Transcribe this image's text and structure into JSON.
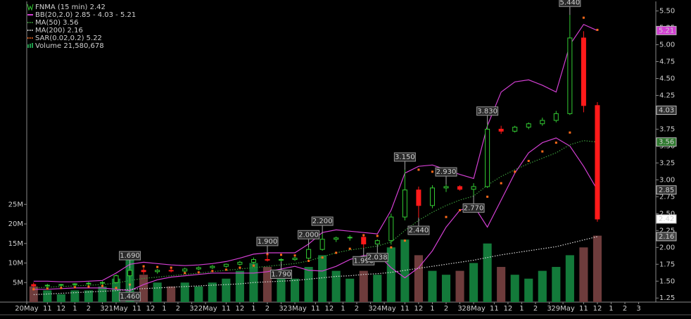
{
  "chart_data": {
    "type": "candlestick",
    "title": "FNMA (15 min) 2.42",
    "title_color": "#ffffff",
    "up_color": "#33cc33",
    "down_color": "#ff1a1a",
    "xlim": [
      0,
      45.75
    ],
    "xticks": [
      {
        "value": 0,
        "label": "20May"
      },
      {
        "value": 1.5,
        "label": "11"
      },
      {
        "value": 2.5,
        "label": "12"
      },
      {
        "value": 3.5,
        "label": "1"
      },
      {
        "value": 4.5,
        "label": "2"
      },
      {
        "value": 5.5,
        "label": "3"
      },
      {
        "value": 6.5,
        "label": "21May"
      },
      {
        "value": 8,
        "label": "11"
      },
      {
        "value": 9,
        "label": "12"
      },
      {
        "value": 10,
        "label": "1"
      },
      {
        "value": 11,
        "label": "2"
      },
      {
        "value": 12,
        "label": "3"
      },
      {
        "value": 13,
        "label": "22May"
      },
      {
        "value": 14.5,
        "label": "11"
      },
      {
        "value": 15.5,
        "label": "12"
      },
      {
        "value": 16.5,
        "label": "1"
      },
      {
        "value": 17.5,
        "label": "2"
      },
      {
        "value": 18.5,
        "label": "3"
      },
      {
        "value": 19.5,
        "label": "23May"
      },
      {
        "value": 21,
        "label": "11"
      },
      {
        "value": 22,
        "label": "12"
      },
      {
        "value": 23,
        "label": "1"
      },
      {
        "value": 24,
        "label": "2"
      },
      {
        "value": 25,
        "label": "3"
      },
      {
        "value": 26,
        "label": "24May"
      },
      {
        "value": 27.5,
        "label": "11"
      },
      {
        "value": 28.5,
        "label": "12"
      },
      {
        "value": 29.5,
        "label": "1"
      },
      {
        "value": 30.5,
        "label": "2"
      },
      {
        "value": 31.5,
        "label": "3"
      },
      {
        "value": 32.5,
        "label": "28May"
      },
      {
        "value": 34,
        "label": "11"
      },
      {
        "value": 35,
        "label": "12"
      },
      {
        "value": 36,
        "label": "1"
      },
      {
        "value": 37,
        "label": "2"
      },
      {
        "value": 38,
        "label": "3"
      },
      {
        "value": 39,
        "label": "29May"
      },
      {
        "value": 40.5,
        "label": "11"
      },
      {
        "value": 41.5,
        "label": "12"
      },
      {
        "value": 42.5,
        "label": "1"
      },
      {
        "value": 43.5,
        "label": "2"
      },
      {
        "value": 44.5,
        "label": "3"
      }
    ],
    "ylim": [
      1.19,
      5.61
    ],
    "yticks": [
      1.25,
      {
        "value": 1.5,
        "label": "1.50"
      },
      1.75,
      {
        "value": 2,
        "label": "2.00"
      },
      2.25,
      {
        "value": 2.5,
        "label": "2.50"
      },
      2.75,
      {
        "value": 3,
        "label": "3.00"
      },
      3.25,
      {
        "value": 3.5,
        "label": "3.50"
      },
      3.75,
      {
        "value": 4,
        "label": "4.00"
      },
      4.25,
      {
        "value": 4.5,
        "label": "4.50"
      },
      4.75,
      {
        "value": 5,
        "label": "5.00"
      },
      5.25,
      {
        "value": 5.5,
        "label": "5.50"
      }
    ],
    "x": [
      0.5,
      1.5,
      2.5,
      3.5,
      4.5,
      5.5,
      6.5,
      7.5,
      8.5,
      9.5,
      10.5,
      11.5,
      12.5,
      13.5,
      14.5,
      15.5,
      16.5,
      17.5,
      18.5,
      19.5,
      20.5,
      21.5,
      22.5,
      23.5,
      24.5,
      25.5,
      26.5,
      27.5,
      28.5,
      29.5,
      30.5,
      31.5,
      32.5,
      33.5,
      34.5,
      35.5,
      36.5,
      37.5,
      38.5,
      39.5,
      40.5,
      41.5
    ],
    "open": [
      1.45,
      1.43,
      1.44,
      1.45,
      1.46,
      1.47,
      1.48,
      1.58,
      1.66,
      1.64,
      1.66,
      1.65,
      1.68,
      1.7,
      1.72,
      1.75,
      1.78,
      1.82,
      1.81,
      1.82,
      1.84,
      1.97,
      2.12,
      2.14,
      2.15,
      2.05,
      2.1,
      2.45,
      2.85,
      2.62,
      2.88,
      2.9,
      2.86,
      2.9,
      3.75,
      3.72,
      3.78,
      3.83,
      3.88,
      3.98,
      5.1,
      4.1
    ],
    "high": [
      1.48,
      1.46,
      1.46,
      1.47,
      1.49,
      1.5,
      1.6,
      1.69,
      1.7,
      1.68,
      1.69,
      1.7,
      1.72,
      1.74,
      1.76,
      1.8,
      1.85,
      1.9,
      1.84,
      1.86,
      2.0,
      2.2,
      2.16,
      2.18,
      2.17,
      2.12,
      2.5,
      3.15,
      2.9,
      2.92,
      2.93,
      2.92,
      2.95,
      3.83,
      3.8,
      3.8,
      3.85,
      3.92,
      4.02,
      5.44,
      5.2,
      4.15
    ],
    "low": [
      1.4,
      1.4,
      1.42,
      1.43,
      1.44,
      1.45,
      1.47,
      1.46,
      1.6,
      1.61,
      1.63,
      1.63,
      1.66,
      1.68,
      1.7,
      1.73,
      1.76,
      1.79,
      1.79,
      1.8,
      1.82,
      1.95,
      2.08,
      2.1,
      1.99,
      2.038,
      2.04,
      2.4,
      2.44,
      2.58,
      2.82,
      2.84,
      2.77,
      2.88,
      3.68,
      3.7,
      3.75,
      3.8,
      3.85,
      3.96,
      4.0,
      2.38
    ],
    "close": [
      1.43,
      1.44,
      1.45,
      1.46,
      1.47,
      1.48,
      1.58,
      1.66,
      1.64,
      1.66,
      1.65,
      1.68,
      1.7,
      1.72,
      1.75,
      1.78,
      1.82,
      1.81,
      1.82,
      1.84,
      1.97,
      2.12,
      2.14,
      2.15,
      2.05,
      2.1,
      2.45,
      2.85,
      2.62,
      2.88,
      2.9,
      2.86,
      2.9,
      3.75,
      3.72,
      3.78,
      3.83,
      3.88,
      3.98,
      5.1,
      4.1,
      2.42
    ],
    "volume": {
      "name": "Volume 21,580,678",
      "color": "#1f9a4a",
      "up_color": "#137a3a",
      "down_color": "#6e3c3c",
      "ylim": [
        0,
        76400000
      ],
      "yticks": [
        {
          "value": 5000000,
          "label": "5M"
        },
        {
          "value": 10000000,
          "label": "10M"
        },
        {
          "value": 15000000,
          "label": "15M"
        },
        {
          "value": 20000000,
          "label": "20M"
        },
        {
          "value": 25000000,
          "label": "25M"
        }
      ],
      "values": [
        4000000,
        3000000,
        2000000,
        3000000,
        3000000,
        4000000,
        6000000,
        12000000,
        7000000,
        5000000,
        4000000,
        5000000,
        4000000,
        5000000,
        6000000,
        8000000,
        10000000,
        9000000,
        6000000,
        6000000,
        9000000,
        12000000,
        8000000,
        6000000,
        8000000,
        7000000,
        14000000,
        16000000,
        12000000,
        8000000,
        7000000,
        8000000,
        10000000,
        15000000,
        9000000,
        7000000,
        6000000,
        8000000,
        9000000,
        12000000,
        14000000,
        17000000
      ]
    },
    "overlays": [
      {
        "name": "BB(20,2.0) 2.85 - 4.03 - 5.21",
        "color": "#d23fd2",
        "style": "line",
        "lines": [
          [
            1.5,
            1.5,
            1.49,
            1.49,
            1.5,
            1.51,
            1.62,
            1.75,
            1.78,
            1.76,
            1.74,
            1.73,
            1.74,
            1.76,
            1.79,
            1.84,
            1.9,
            1.92,
            1.92,
            1.92,
            2.05,
            2.22,
            2.26,
            2.24,
            2.22,
            2.2,
            2.55,
            3.1,
            3.2,
            3.22,
            3.15,
            3.08,
            3.02,
            3.8,
            4.3,
            4.45,
            4.48,
            4.4,
            4.3,
            5.0,
            5.3,
            5.21
          ],
          [
            1.38,
            1.38,
            1.39,
            1.4,
            1.4,
            1.4,
            1.38,
            1.36,
            1.45,
            1.52,
            1.56,
            1.58,
            1.6,
            1.62,
            1.62,
            1.62,
            1.62,
            1.64,
            1.68,
            1.72,
            1.66,
            1.65,
            1.72,
            1.82,
            1.88,
            1.9,
            1.7,
            1.55,
            1.7,
            1.95,
            2.3,
            2.55,
            2.62,
            2.3,
            2.7,
            3.1,
            3.4,
            3.55,
            3.62,
            3.5,
            3.2,
            2.85
          ]
        ]
      },
      {
        "name": "MA(50) 3.56",
        "color": "#3a9a3a",
        "style": "dotted",
        "lines": [
          [
            1.4,
            1.41,
            1.42,
            1.43,
            1.44,
            1.45,
            1.47,
            1.51,
            1.54,
            1.56,
            1.58,
            1.6,
            1.62,
            1.64,
            1.66,
            1.68,
            1.7,
            1.72,
            1.74,
            1.76,
            1.8,
            1.86,
            1.92,
            1.96,
            1.99,
            2.02,
            2.08,
            2.25,
            2.4,
            2.52,
            2.62,
            2.7,
            2.76,
            2.92,
            3.05,
            3.15,
            3.24,
            3.32,
            3.4,
            3.52,
            3.58,
            3.56
          ]
        ]
      },
      {
        "name": "MA(200) 2.16",
        "color": "#d8d8d8",
        "style": "dotted",
        "lines": [
          [
            1.3,
            1.31,
            1.32,
            1.33,
            1.34,
            1.35,
            1.36,
            1.38,
            1.39,
            1.4,
            1.41,
            1.42,
            1.43,
            1.44,
            1.45,
            1.46,
            1.48,
            1.49,
            1.5,
            1.51,
            1.53,
            1.55,
            1.57,
            1.58,
            1.6,
            1.61,
            1.63,
            1.66,
            1.69,
            1.72,
            1.75,
            1.78,
            1.81,
            1.85,
            1.89,
            1.92,
            1.95,
            1.98,
            2.01,
            2.06,
            2.11,
            2.16
          ]
        ]
      },
      {
        "name": "SAR(0.02,0.2) 5.22",
        "color": "#ff6a1a",
        "style": "dots",
        "lines": [
          [
            1.38,
            1.39,
            1.4,
            1.41,
            1.42,
            1.43,
            1.4,
            1.45,
            1.72,
            1.71,
            1.7,
            1.62,
            1.63,
            1.65,
            1.67,
            1.7,
            1.73,
            1.9,
            1.89,
            1.88,
            1.8,
            1.85,
            1.92,
            1.98,
            2.18,
            2.17,
            2.0,
            2.1,
            3.15,
            3.12,
            2.45,
            2.55,
            2.62,
            2.75,
            2.95,
            3.12,
            3.28,
            3.42,
            3.55,
            3.7,
            5.4,
            5.22
          ]
        ]
      }
    ],
    "annotations": [
      {
        "x": 39.5,
        "value": 5.44,
        "label": "5.440"
      },
      {
        "x": 33.5,
        "value": 3.83,
        "label": "3.830"
      },
      {
        "x": 27.5,
        "value": 3.15,
        "label": "3.150"
      },
      {
        "x": 30.5,
        "value": 2.93,
        "label": "2.930"
      },
      {
        "x": 28.5,
        "value": 2.44,
        "label": "2.440"
      },
      {
        "x": 32.5,
        "value": 2.77,
        "label": "2.770"
      },
      {
        "x": 21.5,
        "value": 2.2,
        "label": "2.200"
      },
      {
        "x": 20.5,
        "value": 2.0,
        "label": "2.000"
      },
      {
        "x": 24.5,
        "value": 1.99,
        "label": "1.990"
      },
      {
        "x": 25.5,
        "value": 2.038,
        "label": "2.038"
      },
      {
        "x": 17.5,
        "value": 1.9,
        "label": "1.900"
      },
      {
        "x": 18.5,
        "value": 1.79,
        "label": "1.790"
      },
      {
        "x": 7.5,
        "value": 1.69,
        "label": "1.690"
      },
      {
        "x": 7.5,
        "value": 1.46,
        "label": "1.460"
      }
    ],
    "price_tags": [
      {
        "value": 5.21,
        "fill": "#d23fd2",
        "text_color": "#ffffff"
      },
      {
        "value": 4.03,
        "fill": "#333333",
        "text_color": "#ffffff"
      },
      {
        "value": 3.56,
        "fill": "#2f7a2f",
        "text_color": "#ffffff"
      },
      {
        "value": 2.85,
        "fill": "#333333",
        "text_color": "#ffffff"
      },
      {
        "value": 2.42,
        "fill": "#ffffff",
        "text_color": "#000000"
      },
      {
        "value": 2.16,
        "fill": "#444444",
        "text_color": "#ffffff"
      }
    ]
  }
}
